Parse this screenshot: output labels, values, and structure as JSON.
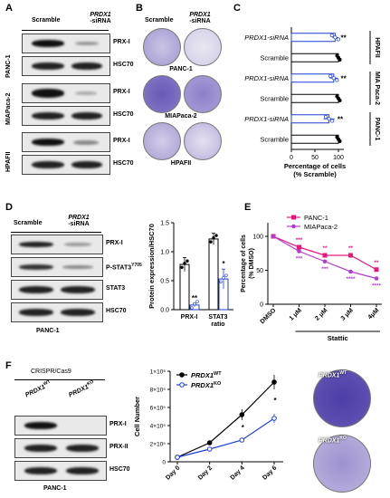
{
  "panel_letters": {
    "a": "A",
    "b": "B",
    "c": "C",
    "d": "D",
    "e": "E",
    "f": "F"
  },
  "panelA": {
    "col1": "Scramble",
    "col2_gene": "PRDX1",
    "col2_suffix": "-siRNA",
    "groups": [
      {
        "name": "PANC-1",
        "rows": [
          "PRX-I",
          "HSC70"
        ]
      },
      {
        "name": "MIAPaca-2",
        "rows": [
          "PRX-I",
          "HSC70"
        ]
      },
      {
        "name": "HPAFII",
        "rows": [
          "PRX-I",
          "HSC70"
        ]
      }
    ]
  },
  "panelB": {
    "col1": "Scramble",
    "col2_gene": "PRDX1",
    "col2_suffix": "-siRNA",
    "rows": [
      "PANC-1",
      "MIAPaca-2",
      "HPAFII"
    ]
  },
  "panelD": {
    "col1": "Scramble",
    "col2_gene": "PRDX1",
    "col2_suffix": "-siRNA",
    "rows": [
      "PRX-I",
      "P-STAT3",
      "STAT3",
      "HSC70"
    ],
    "pstat_sup": "Y705",
    "cell_line": "PANC-1"
  },
  "panelF": {
    "crispr": "CRISPR/Cas9",
    "wt": "PRDX1",
    "wt_sup": "WT",
    "ko": "PRDX1",
    "ko_sup": "KO",
    "rows": [
      "PRX-I",
      "PRX-II",
      "HSC70"
    ],
    "cell_line": "PANC-1",
    "dish_wt": "PRDX1",
    "dish_wt_sup": "WT",
    "dish_ko": "PRDX1",
    "dish_ko_sup": "KO"
  },
  "chart_data": [
    {
      "panel": "C",
      "type": "bar",
      "orientation": "horizontal",
      "categories": [
        "PRDX1-siRNA",
        "Scramble",
        "PRDX1-siRNA",
        "Scramble",
        "PRDX1-siRNA",
        "Scramble"
      ],
      "groups": [
        "HPAFII",
        "MIA Paca-2",
        "PANC-1"
      ],
      "values": [
        93,
        100,
        90,
        100,
        80,
        100
      ],
      "errors": [
        6,
        0,
        9,
        0,
        12,
        0
      ],
      "significance": [
        "**",
        "",
        "**",
        "",
        "**",
        ""
      ],
      "xlabel": "Percentage of cells (% Scramble)",
      "xticks": [
        0,
        50,
        100
      ],
      "xlim": [
        0,
        100
      ],
      "colors": {
        "sirna": "#1f3fd6",
        "scramble": "#000000"
      }
    },
    {
      "panel": "D",
      "type": "bar",
      "categories": [
        "PRX-I",
        "STAT3 ratio"
      ],
      "series": [
        {
          "name": "Scramble",
          "values": [
            0.78,
            1.22
          ]
        },
        {
          "name": "PRDX1-siRNA",
          "values": [
            0.08,
            0.53
          ]
        }
      ],
      "errors": [
        [
          0.12,
          0.1
        ],
        [
          0.03,
          0.17
        ]
      ],
      "significance": [
        "**",
        "*"
      ],
      "ylabel": "Protein expression/HSC70",
      "yticks": [
        0.0,
        0.5,
        1.0,
        1.5
      ],
      "ylim": [
        0,
        1.5
      ],
      "colors": {
        "Scramble": "#000000",
        "PRDX1-siRNA": "#1f3fd6"
      }
    },
    {
      "panel": "E",
      "type": "line",
      "categories": [
        "DMSO",
        "1 μM",
        "2 μM",
        "3 μM",
        "4μM"
      ],
      "x_group_label": "Stattic",
      "series": [
        {
          "name": "PANC-1",
          "values": [
            100,
            84,
            72,
            72,
            51
          ],
          "color": "#e8177b",
          "marker": "square"
        },
        {
          "name": "MIAPaca-2",
          "values": [
            100,
            78,
            63,
            48,
            38
          ],
          "color": "#b23bd1",
          "marker": "circle"
        }
      ],
      "significance": [
        "",
        "***",
        "**",
        "**",
        "**"
      ],
      "significance2": [
        "",
        "***",
        "***",
        "****",
        "****"
      ],
      "ylabel": "Percentage of cells (% DMSO)",
      "yticks": [
        0,
        50,
        100
      ],
      "ylim": [
        0,
        120
      ]
    },
    {
      "panel": "F",
      "type": "line",
      "categories": [
        "Day 0",
        "Day 2",
        "Day 4",
        "Day 6"
      ],
      "series": [
        {
          "name": "PRDX1WT",
          "values": [
            50000,
            210000,
            520000,
            880000
          ],
          "errors": [
            10000,
            20000,
            60000,
            80000
          ],
          "color": "#000000",
          "marker": "circle"
        },
        {
          "name": "PRDX1KO",
          "values": [
            50000,
            140000,
            240000,
            480000
          ],
          "errors": [
            10000,
            15000,
            20000,
            50000
          ],
          "color": "#1f3fd6",
          "marker": "circle-open"
        }
      ],
      "significance": [
        "",
        "",
        "*",
        "*"
      ],
      "ylabel": "Cell Number",
      "ytick_labels": [
        "0",
        "2×10⁵",
        "4×10⁵",
        "6×10⁵",
        "8×10⁵",
        "1×10⁶"
      ],
      "yticks": [
        0,
        200000,
        400000,
        600000,
        800000,
        1000000
      ],
      "ylim": [
        0,
        1000000
      ]
    }
  ]
}
